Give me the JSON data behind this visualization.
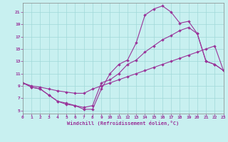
{
  "xlabel": "Windchill (Refroidissement éolien,°C)",
  "xlim": [
    0,
    23
  ],
  "ylim": [
    4.5,
    22.5
  ],
  "xticks": [
    0,
    1,
    2,
    3,
    4,
    5,
    6,
    7,
    8,
    9,
    10,
    11,
    12,
    13,
    14,
    15,
    16,
    17,
    18,
    19,
    20,
    21,
    22,
    23
  ],
  "yticks": [
    5,
    7,
    9,
    11,
    13,
    15,
    17,
    19,
    21
  ],
  "bg_color": "#c8f0f0",
  "grid_color": "#a0d8d8",
  "line_color": "#993399",
  "line1_x": [
    0,
    1,
    2,
    3,
    4,
    5,
    6,
    7,
    8,
    9,
    10,
    11,
    12,
    13,
    14,
    15,
    16,
    17,
    18,
    19,
    20,
    21,
    22,
    23
  ],
  "line1_y": [
    9.5,
    8.8,
    8.5,
    7.5,
    6.5,
    6.2,
    5.8,
    5.2,
    5.2,
    8.5,
    11.0,
    12.5,
    13.2,
    16.0,
    20.5,
    21.5,
    22.0,
    21.0,
    19.2,
    19.5,
    17.5,
    13.0,
    12.5,
    11.5
  ],
  "line2_x": [
    0,
    1,
    2,
    3,
    4,
    5,
    6,
    7,
    8,
    9,
    10,
    11,
    12,
    13,
    14,
    15,
    16,
    17,
    18,
    19,
    20,
    21,
    22,
    23
  ],
  "line2_y": [
    9.5,
    8.8,
    8.5,
    7.5,
    6.5,
    6.0,
    5.8,
    5.5,
    5.8,
    9.5,
    10.0,
    11.0,
    12.5,
    13.2,
    14.5,
    15.5,
    16.5,
    17.2,
    18.0,
    18.5,
    17.5,
    13.0,
    12.5,
    11.5
  ],
  "line3_x": [
    0,
    1,
    2,
    3,
    4,
    5,
    6,
    7,
    8,
    9,
    10,
    11,
    12,
    13,
    14,
    15,
    16,
    17,
    18,
    19,
    20,
    21,
    22,
    23
  ],
  "line3_y": [
    9.5,
    9.0,
    8.8,
    8.5,
    8.2,
    8.0,
    7.8,
    7.8,
    8.5,
    9.0,
    9.5,
    10.0,
    10.5,
    11.0,
    11.5,
    12.0,
    12.5,
    13.0,
    13.5,
    14.0,
    14.5,
    15.0,
    15.5,
    11.5
  ]
}
